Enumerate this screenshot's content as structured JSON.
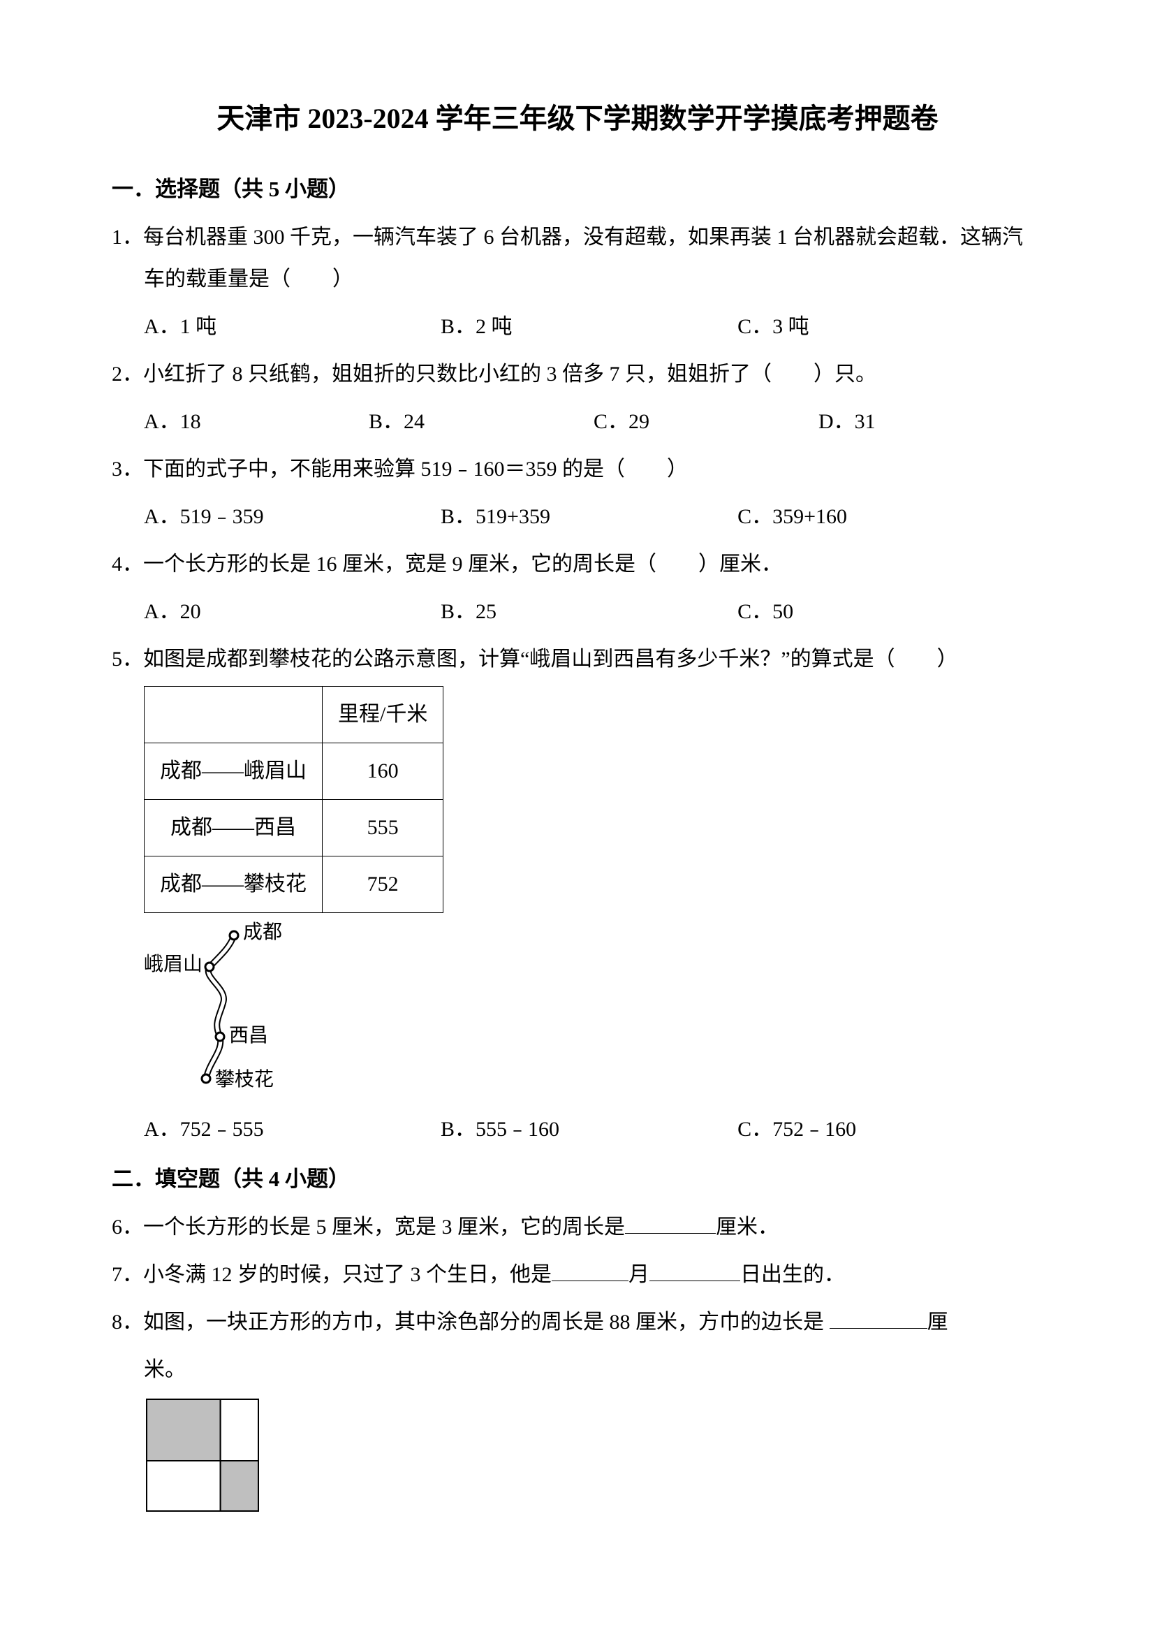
{
  "title": "天津市 2023-2024 学年三年级下学期数学开学摸底考押题卷",
  "sections": {
    "s1": {
      "header": "一．选择题（共 5 小题）"
    },
    "s2": {
      "header": "二．填空题（共 4 小题）"
    }
  },
  "q1": {
    "text": "1．每台机器重 300 千克，一辆汽车装了 6 台机器，没有超载，如果再装 1 台机器就会超载．这辆汽车的载重量是（　　）",
    "a": "A．1 吨",
    "b": "B．2 吨",
    "c": "C．3 吨"
  },
  "q2": {
    "text": "2．小红折了 8 只纸鹤，姐姐折的只数比小红的 3 倍多 7 只，姐姐折了（　　）只。",
    "a": "A．18",
    "b": "B．24",
    "c": "C．29",
    "d": "D．31"
  },
  "q3": {
    "text": "3．下面的式子中，不能用来验算 519﹣160＝359 的是（　　）",
    "a": "A．519﹣359",
    "b": "B．519+359",
    "c": "C．359+160"
  },
  "q4": {
    "text": "4．一个长方形的长是 16 厘米，宽是 9 厘米，它的周长是（　　）厘米．",
    "a": "A．20",
    "b": "B．25",
    "c": "C．50"
  },
  "q5": {
    "text": "5．如图是成都到攀枝花的公路示意图，计算“峨眉山到西昌有多少千米？”的算式是（　　）",
    "table": {
      "head_col1": "",
      "head_col2": "里程/千米",
      "rows": [
        {
          "route": "成都——峨眉山",
          "km": "160"
        },
        {
          "route": "成都——西昌",
          "km": "555"
        },
        {
          "route": "成都——攀枝花",
          "km": "752"
        }
      ]
    },
    "map": {
      "chengdu": "成都",
      "emei": "峨眉山",
      "xichang": "西昌",
      "panzhihua": "攀枝花",
      "path_color": "#000000",
      "dot_color": "#000000"
    },
    "a": "A．752﹣555",
    "b": "B．555﹣160",
    "c": "C．752﹣160"
  },
  "q6": {
    "text_a": "6．一个长方形的长是 5 厘米，宽是 3 厘米，它的周长是",
    "text_b": "厘米．",
    "blank_w": 130
  },
  "q7": {
    "text_a": "7．小冬满 12 岁的时候，只过了 3 个生日，他是",
    "text_b": "月",
    "text_c": "日出生的．",
    "blank1_w": 110,
    "blank2_w": 130
  },
  "q8": {
    "text_a": "8．如图，一块正方形的方巾，其中涂色部分的周长是 88 厘米，方巾的边长是 ",
    "text_b": "厘米。",
    "blank_w": 140,
    "shape": {
      "size": 160,
      "split_x": 0.66,
      "split_y": 0.55,
      "fill": "#bfbfbf",
      "stroke": "#000000",
      "bg": "#ffffff"
    }
  },
  "colors": {
    "text": "#000000",
    "background": "#ffffff",
    "table_border": "#000000"
  },
  "fonts": {
    "body_family": "SimSun",
    "body_size_pt": 22,
    "title_size_pt": 30,
    "title_weight": "bold"
  }
}
